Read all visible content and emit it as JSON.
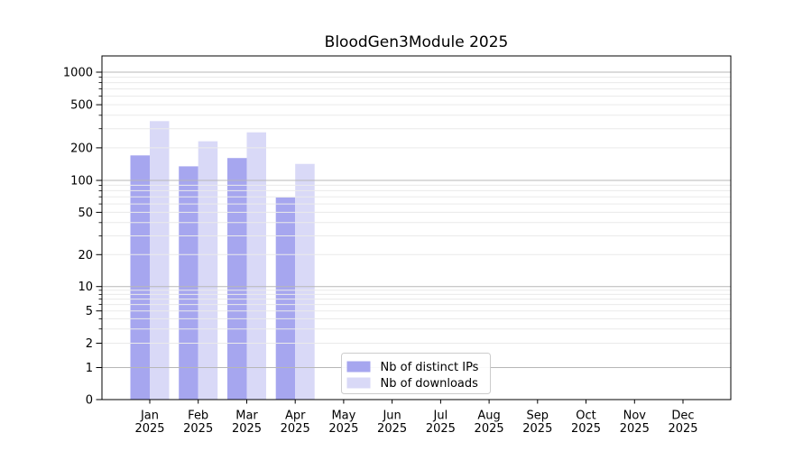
{
  "chart_data": {
    "type": "bar",
    "title": "BloodGen3Module 2025",
    "x_tick_labels": [
      "Jan\n2025",
      "Feb\n2025",
      "Mar\n2025",
      "Apr\n2025",
      "May\n2025",
      "Jun\n2025",
      "Jul\n2025",
      "Aug\n2025",
      "Sep\n2025",
      "Oct\n2025",
      "Nov\n2025",
      "Dec\n2025"
    ],
    "series": [
      {
        "name": "Nb of distinct IPs",
        "color": "#a6a6ef",
        "values": [
          170,
          135,
          161,
          69,
          null,
          null,
          null,
          null,
          null,
          null,
          null,
          null
        ]
      },
      {
        "name": "Nb of downloads",
        "color": "#d9d9f7",
        "values": [
          353,
          230,
          278,
          142,
          null,
          null,
          null,
          null,
          null,
          null,
          null,
          null
        ]
      }
    ],
    "yticks": [
      0,
      1,
      2,
      5,
      10,
      20,
      50,
      100,
      200,
      500,
      1000
    ],
    "yscale": "symlog",
    "ylim": [
      0,
      1400
    ],
    "xlabel": "",
    "ylabel": "",
    "grid": "on",
    "legend_position": "lower center inside axes",
    "colors": {
      "major_grid": "#b7b7b7",
      "minor_grid": "#eaeaea",
      "axis": "#000000",
      "text": "#000000",
      "legend_border": "#cccccc"
    }
  }
}
